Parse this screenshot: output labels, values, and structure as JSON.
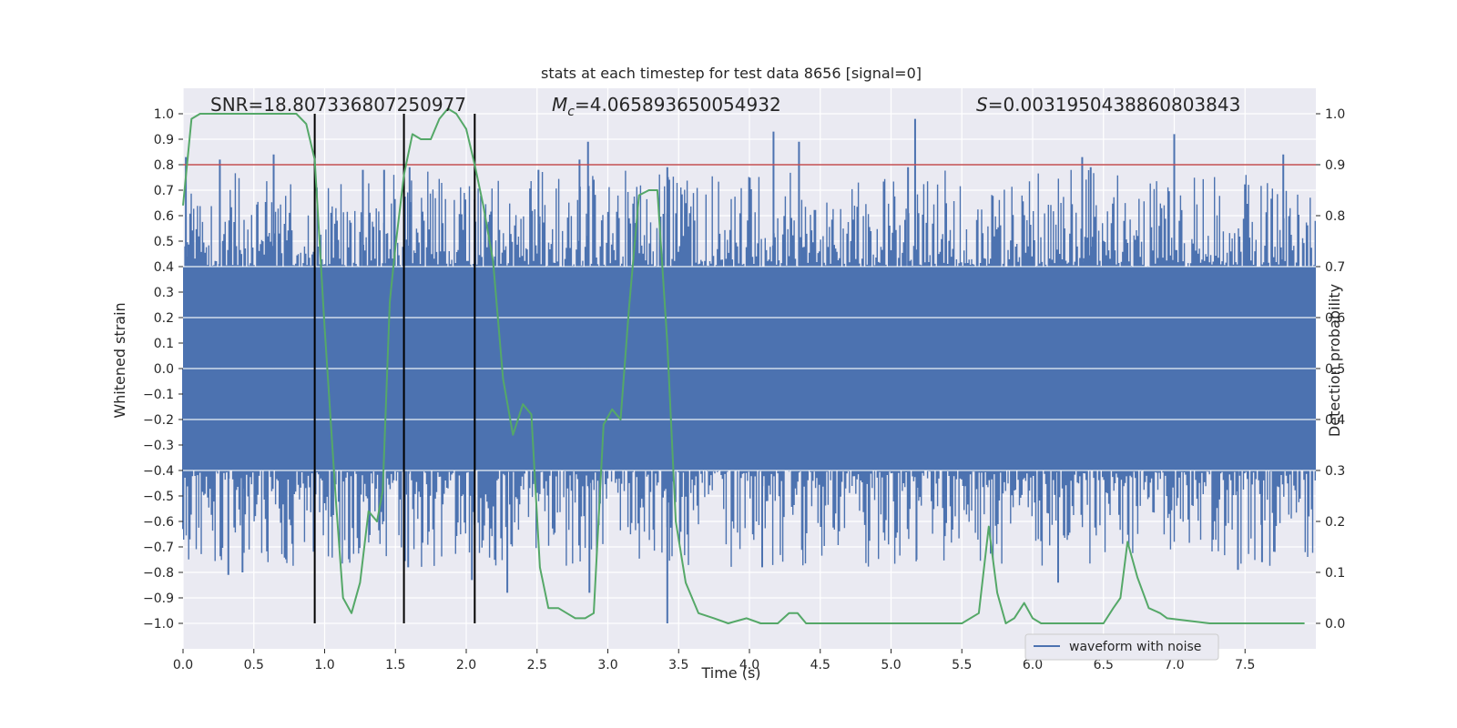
{
  "chart_data": {
    "type": "line",
    "title": "stats at each timestep for test data 8656 [signal=0]",
    "xlabel": "Time (s)",
    "ylabel_left": "Whitened strain",
    "ylabel_right": "Detection probability",
    "xlim": [
      0.0,
      8.0
    ],
    "ylim_left": [
      -1.1,
      1.1
    ],
    "ylim_right": [
      -0.05,
      1.05
    ],
    "x_ticks": [
      0.0,
      0.5,
      1.0,
      1.5,
      2.0,
      2.5,
      3.0,
      3.5,
      4.0,
      4.5,
      5.0,
      5.5,
      6.0,
      6.5,
      7.0,
      7.5
    ],
    "y_ticks_left": [
      -1.0,
      -0.9,
      -0.8,
      -0.7,
      -0.6,
      -0.5,
      -0.4,
      -0.3,
      -0.2,
      -0.1,
      0.0,
      0.1,
      0.2,
      0.3,
      0.4,
      0.5,
      0.6,
      0.7,
      0.8,
      0.9,
      1.0
    ],
    "y_ticks_right": [
      0.0,
      0.1,
      0.2,
      0.3,
      0.4,
      0.5,
      0.6,
      0.7,
      0.8,
      0.9,
      1.0
    ],
    "grid": true,
    "legend_position": "lower-right",
    "annotations": {
      "snr": "SNR=18.807336807250977",
      "mc_symbol": "M",
      "mc_subscript": "c",
      "mc_value": "=4.065893650054932",
      "s_symbol": "S",
      "s_value": "=0.0031950438860803843"
    },
    "threshold_line": {
      "y_right": 0.9,
      "color": "#c44e52"
    },
    "vertical_lines": {
      "x": [
        0.93,
        1.56,
        2.06
      ],
      "y_range_left": [
        -1.0,
        1.0
      ],
      "color": "#000000"
    },
    "series": [
      {
        "name": "waveform with noise",
        "axis": "left",
        "color": "#4c72b0",
        "noise_band": [
          -0.4,
          0.4
        ],
        "peaks": [
          {
            "x": 0.02,
            "y": 0.83
          },
          {
            "x": 0.26,
            "y": 0.82
          },
          {
            "x": 0.64,
            "y": 0.84
          },
          {
            "x": 1.27,
            "y": 0.78
          },
          {
            "x": 1.42,
            "y": 0.78
          },
          {
            "x": 1.6,
            "y": 0.79
          },
          {
            "x": 2.51,
            "y": 0.78
          },
          {
            "x": 2.8,
            "y": 0.82
          },
          {
            "x": 2.86,
            "y": 0.89
          },
          {
            "x": 3.42,
            "y": 0.79
          },
          {
            "x": 4.17,
            "y": 0.93
          },
          {
            "x": 4.35,
            "y": 0.89
          },
          {
            "x": 5.17,
            "y": 0.98
          },
          {
            "x": 5.12,
            "y": 0.79
          },
          {
            "x": 6.35,
            "y": 0.83
          },
          {
            "x": 6.41,
            "y": 0.79
          },
          {
            "x": 7.0,
            "y": 0.92
          },
          {
            "x": 7.77,
            "y": 0.84
          }
        ],
        "troughs": [
          {
            "x": 0.0,
            "y": -0.63
          },
          {
            "x": 0.32,
            "y": -0.81
          },
          {
            "x": 0.42,
            "y": -0.8
          },
          {
            "x": 1.59,
            "y": -0.78
          },
          {
            "x": 2.04,
            "y": -0.83
          },
          {
            "x": 2.29,
            "y": -0.88
          },
          {
            "x": 2.87,
            "y": -0.88
          },
          {
            "x": 3.42,
            "y": -1.0
          },
          {
            "x": 4.09,
            "y": -0.78
          },
          {
            "x": 5.18,
            "y": -0.75
          },
          {
            "x": 6.18,
            "y": -0.84
          },
          {
            "x": 7.45,
            "y": -0.79
          },
          {
            "x": 7.62,
            "y": -0.76
          }
        ]
      },
      {
        "name": "",
        "axis": "right",
        "color": "#55a868",
        "x": [
          0.0,
          0.06,
          0.12,
          0.3,
          0.6,
          0.8,
          0.87,
          0.93,
          1.0,
          1.08,
          1.13,
          1.19,
          1.25,
          1.31,
          1.37,
          1.41,
          1.46,
          1.5,
          1.56,
          1.62,
          1.68,
          1.75,
          1.81,
          1.87,
          1.93,
          2.0,
          2.06,
          2.12,
          2.19,
          2.26,
          2.33,
          2.4,
          2.46,
          2.52,
          2.58,
          2.65,
          2.71,
          2.77,
          2.84,
          2.9,
          2.97,
          3.03,
          3.09,
          3.15,
          3.22,
          3.29,
          3.35,
          3.42,
          3.48,
          3.55,
          3.64,
          3.75,
          3.85,
          3.98,
          4.08,
          4.2,
          4.28,
          4.34,
          4.4,
          4.55,
          5.0,
          5.5,
          5.62,
          5.69,
          5.75,
          5.81,
          5.87,
          5.94,
          6.0,
          6.06,
          6.18,
          6.4,
          6.5,
          6.57,
          6.62,
          6.67,
          6.74,
          6.82,
          6.9,
          6.95,
          7.25,
          7.6,
          7.86,
          7.92
        ],
        "values": [
          0.82,
          0.99,
          1.0,
          1.0,
          1.0,
          1.0,
          0.98,
          0.91,
          0.58,
          0.24,
          0.05,
          0.02,
          0.08,
          0.22,
          0.2,
          0.26,
          0.63,
          0.74,
          0.88,
          0.96,
          0.95,
          0.95,
          0.99,
          1.01,
          1.0,
          0.97,
          0.9,
          0.82,
          0.71,
          0.48,
          0.37,
          0.43,
          0.41,
          0.11,
          0.03,
          0.03,
          0.02,
          0.01,
          0.01,
          0.02,
          0.39,
          0.42,
          0.4,
          0.62,
          0.84,
          0.85,
          0.85,
          0.55,
          0.2,
          0.08,
          0.02,
          0.01,
          0.0,
          0.01,
          0.0,
          0.0,
          0.02,
          0.02,
          0.0,
          0.0,
          0.0,
          0.0,
          0.02,
          0.19,
          0.06,
          0.0,
          0.01,
          0.04,
          0.01,
          0.0,
          0.0,
          0.0,
          0.0,
          0.03,
          0.05,
          0.16,
          0.09,
          0.03,
          0.02,
          0.01,
          0.0,
          0.0,
          0.0,
          0.0
        ]
      }
    ]
  }
}
